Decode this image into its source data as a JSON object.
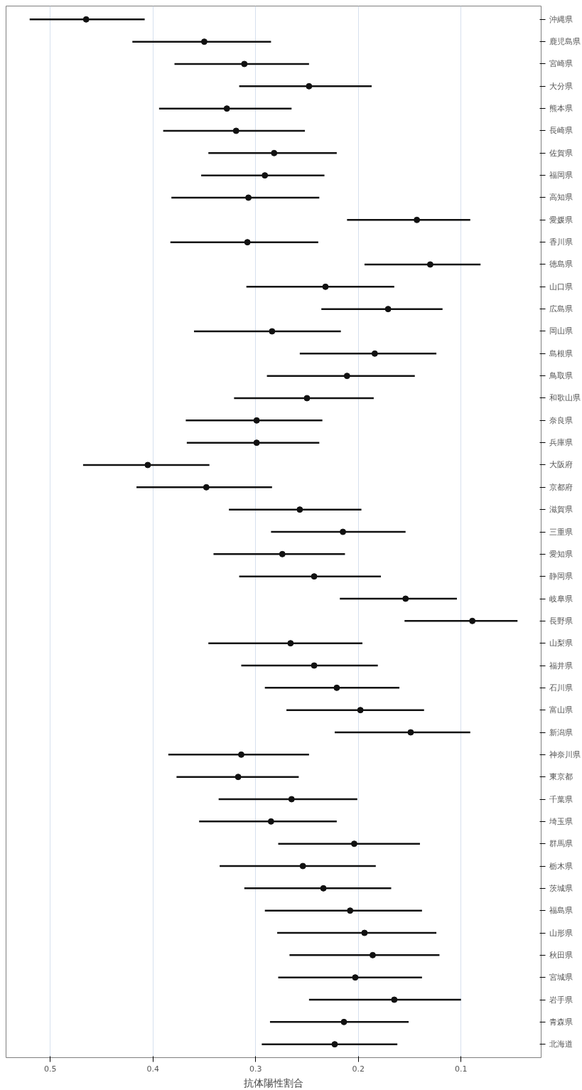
{
  "chart_data": {
    "type": "scatter",
    "orientation": "horizontal",
    "xlabel": "抗体陽性割合",
    "categories": [
      "沖縄県",
      "鹿児島県",
      "宮崎県",
      "大分県",
      "熊本県",
      "長崎県",
      "佐賀県",
      "福岡県",
      "高知県",
      "愛媛県",
      "香川県",
      "徳島県",
      "山口県",
      "広島県",
      "岡山県",
      "島根県",
      "鳥取県",
      "和歌山県",
      "奈良県",
      "兵庫県",
      "大阪府",
      "京都府",
      "滋賀県",
      "三重県",
      "愛知県",
      "静岡県",
      "岐阜県",
      "長野県",
      "山梨県",
      "福井県",
      "石川県",
      "富山県",
      "新潟県",
      "神奈川県",
      "東京都",
      "千葉県",
      "埼玉県",
      "群馬県",
      "栃木県",
      "茨城県",
      "福島県",
      "山形県",
      "秋田県",
      "宮城県",
      "岩手県",
      "青森県",
      "北海道"
    ],
    "values": [
      0.465,
      0.35,
      0.311,
      0.248,
      0.328,
      0.319,
      0.282,
      0.291,
      0.307,
      0.143,
      0.308,
      0.13,
      0.232,
      0.171,
      0.284,
      0.184,
      0.211,
      0.25,
      0.299,
      0.299,
      0.405,
      0.348,
      0.257,
      0.215,
      0.274,
      0.243,
      0.154,
      0.089,
      0.266,
      0.243,
      0.221,
      0.198,
      0.149,
      0.314,
      0.317,
      0.265,
      0.285,
      0.204,
      0.254,
      0.234,
      0.208,
      0.194,
      0.186,
      0.203,
      0.165,
      0.214,
      0.223
    ],
    "errors": [
      [
        0.408,
        0.52
      ],
      [
        0.285,
        0.42
      ],
      [
        0.248,
        0.379
      ],
      [
        0.187,
        0.316
      ],
      [
        0.265,
        0.394
      ],
      [
        0.252,
        0.39
      ],
      [
        0.221,
        0.346
      ],
      [
        0.233,
        0.353
      ],
      [
        0.238,
        0.382
      ],
      [
        0.091,
        0.211
      ],
      [
        0.239,
        0.383
      ],
      [
        0.081,
        0.194
      ],
      [
        0.165,
        0.309
      ],
      [
        0.118,
        0.236
      ],
      [
        0.217,
        0.36
      ],
      [
        0.124,
        0.257
      ],
      [
        0.145,
        0.289
      ],
      [
        0.185,
        0.321
      ],
      [
        0.235,
        0.368
      ],
      [
        0.238,
        0.367
      ],
      [
        0.345,
        0.468
      ],
      [
        0.284,
        0.416
      ],
      [
        0.197,
        0.326
      ],
      [
        0.154,
        0.285
      ],
      [
        0.213,
        0.341
      ],
      [
        0.178,
        0.316
      ],
      [
        0.104,
        0.218
      ],
      [
        0.045,
        0.155
      ],
      [
        0.196,
        0.346
      ],
      [
        0.181,
        0.314
      ],
      [
        0.16,
        0.291
      ],
      [
        0.136,
        0.27
      ],
      [
        0.091,
        0.223
      ],
      [
        0.248,
        0.385
      ],
      [
        0.258,
        0.377
      ],
      [
        0.201,
        0.336
      ],
      [
        0.221,
        0.355
      ],
      [
        0.14,
        0.278
      ],
      [
        0.183,
        0.335
      ],
      [
        0.168,
        0.311
      ],
      [
        0.138,
        0.291
      ],
      [
        0.124,
        0.279
      ],
      [
        0.121,
        0.267
      ],
      [
        0.138,
        0.278
      ],
      [
        0.1,
        0.248
      ],
      [
        0.151,
        0.286
      ],
      [
        0.162,
        0.294
      ]
    ],
    "color": "#111111",
    "marker": "circle",
    "xlim": [
      0.543,
      0.022
    ],
    "xticks": [
      0.5,
      0.4,
      0.3,
      0.2,
      0.1
    ],
    "grid": "x"
  }
}
